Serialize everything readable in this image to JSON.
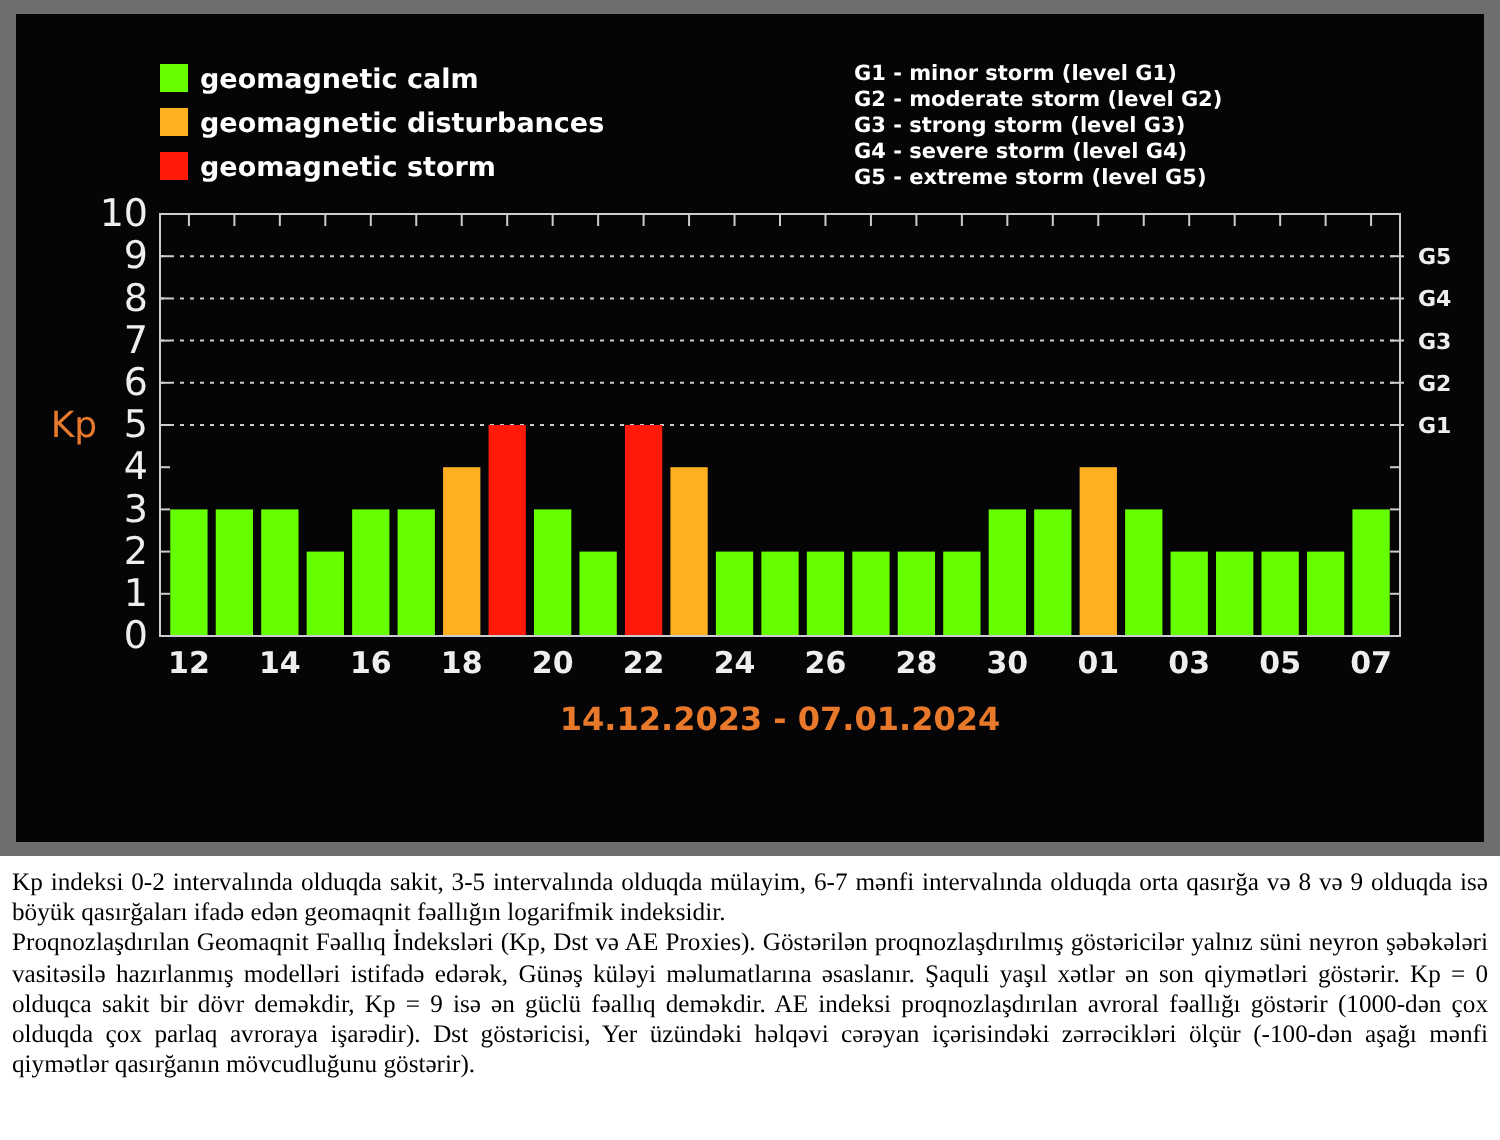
{
  "chart_data": {
    "type": "bar",
    "xlabel": "14.12.2023 - 07.01.2024",
    "ylabel": "Kp",
    "categories": [
      "12",
      null,
      "14",
      null,
      "16",
      null,
      "18",
      null,
      "20",
      null,
      "22",
      null,
      "24",
      null,
      "26",
      null,
      "28",
      null,
      "30",
      null,
      "01",
      null,
      "03",
      null,
      "05",
      null,
      "07"
    ],
    "series": [
      {
        "name": "geomagnetic calm",
        "color": "#66ff00",
        "values": [
          3,
          3,
          3,
          2,
          3,
          3,
          null,
          null,
          3,
          2,
          null,
          null,
          2,
          2,
          2,
          2,
          2,
          2,
          3,
          3,
          null,
          3,
          2,
          2,
          2,
          2,
          3
        ]
      },
      {
        "name": "geomagnetic disturbances",
        "color": "#ffb020",
        "values": [
          null,
          null,
          null,
          null,
          null,
          null,
          4,
          null,
          null,
          null,
          null,
          4,
          null,
          null,
          null,
          null,
          null,
          null,
          null,
          null,
          4,
          null,
          null,
          null,
          null,
          null,
          null
        ]
      },
      {
        "name": "geomagnetic storm",
        "color": "#ff1a0a",
        "values": [
          null,
          null,
          null,
          null,
          null,
          null,
          null,
          5,
          null,
          null,
          5,
          null,
          null,
          null,
          null,
          null,
          null,
          null,
          null,
          null,
          null,
          null,
          null,
          null,
          null,
          null,
          null
        ]
      }
    ],
    "ylim": [
      0,
      10
    ],
    "yticks": [
      0,
      1,
      2,
      3,
      4,
      5,
      6,
      7,
      8,
      9,
      10
    ],
    "ref_lines": [
      {
        "axis": "y",
        "value": 5,
        "label": "G1",
        "line_style": "dotted",
        "color": "#cccccc"
      },
      {
        "axis": "y",
        "value": 6,
        "label": "G2",
        "line_style": "dotted",
        "color": "#cccccc"
      },
      {
        "axis": "y",
        "value": 7,
        "label": "G3",
        "line_style": "dotted",
        "color": "#cccccc"
      },
      {
        "axis": "y",
        "value": 8,
        "label": "G4",
        "line_style": "dotted",
        "color": "#cccccc"
      },
      {
        "axis": "y",
        "value": 9,
        "label": "G5",
        "line_style": "dotted",
        "color": "#cccccc"
      }
    ],
    "legend": "top left",
    "annotations": [
      "G1 - minor storm (level G1)",
      "G2 - moderate storm (level G2)",
      "G3 - strong storm (level G3)",
      "G4 - severe storm (level G4)",
      "G5 - extreme storm (level G5)",
      "Kp indeksi 0-2 intervalında olduqda sakit, 3-5 intervalında olduqda mülayim, 6-7 mənfi intervalında olduqda orta qasırğa və 8 və 9 olduqda isə böyük qasırğaları ifadə edən geomaqnit fəallığın logarifmik indeksidir.",
      "Proqnozlaşdırılan Geomaqnit Fəallıq İndeksləri (Kp, Dst və AE Proxies). Göstərilən proqnozlaşdırılmış göstəricilər yalnız süni neyron şəbəkələri vasitəsilə hazırlanmış modelləri istifadə edərək, Günəş küləyi məlumatlarına əsaslanır. Şaquli yaşıl xətlər ən son qiymətləri göstərir. Kp = 0 olduqca sakit bir dövr deməkdir, Kp = 9 isə ən güclü fəallıq deməkdir. AE indeksi proqnozlaşdırılan avroral fəallığı göstərir (1000-dən çox olduqda çox parlaq avroraya işarədir). Dst göstəricisi, Yer üzündəki həlqəvi cərəyan içərisindəki zərrəcikləri ölçür (-100-dən aşağı mənfi qiymətlər qasırğanın mövcudluğunu göstərir)."
    ]
  }
}
